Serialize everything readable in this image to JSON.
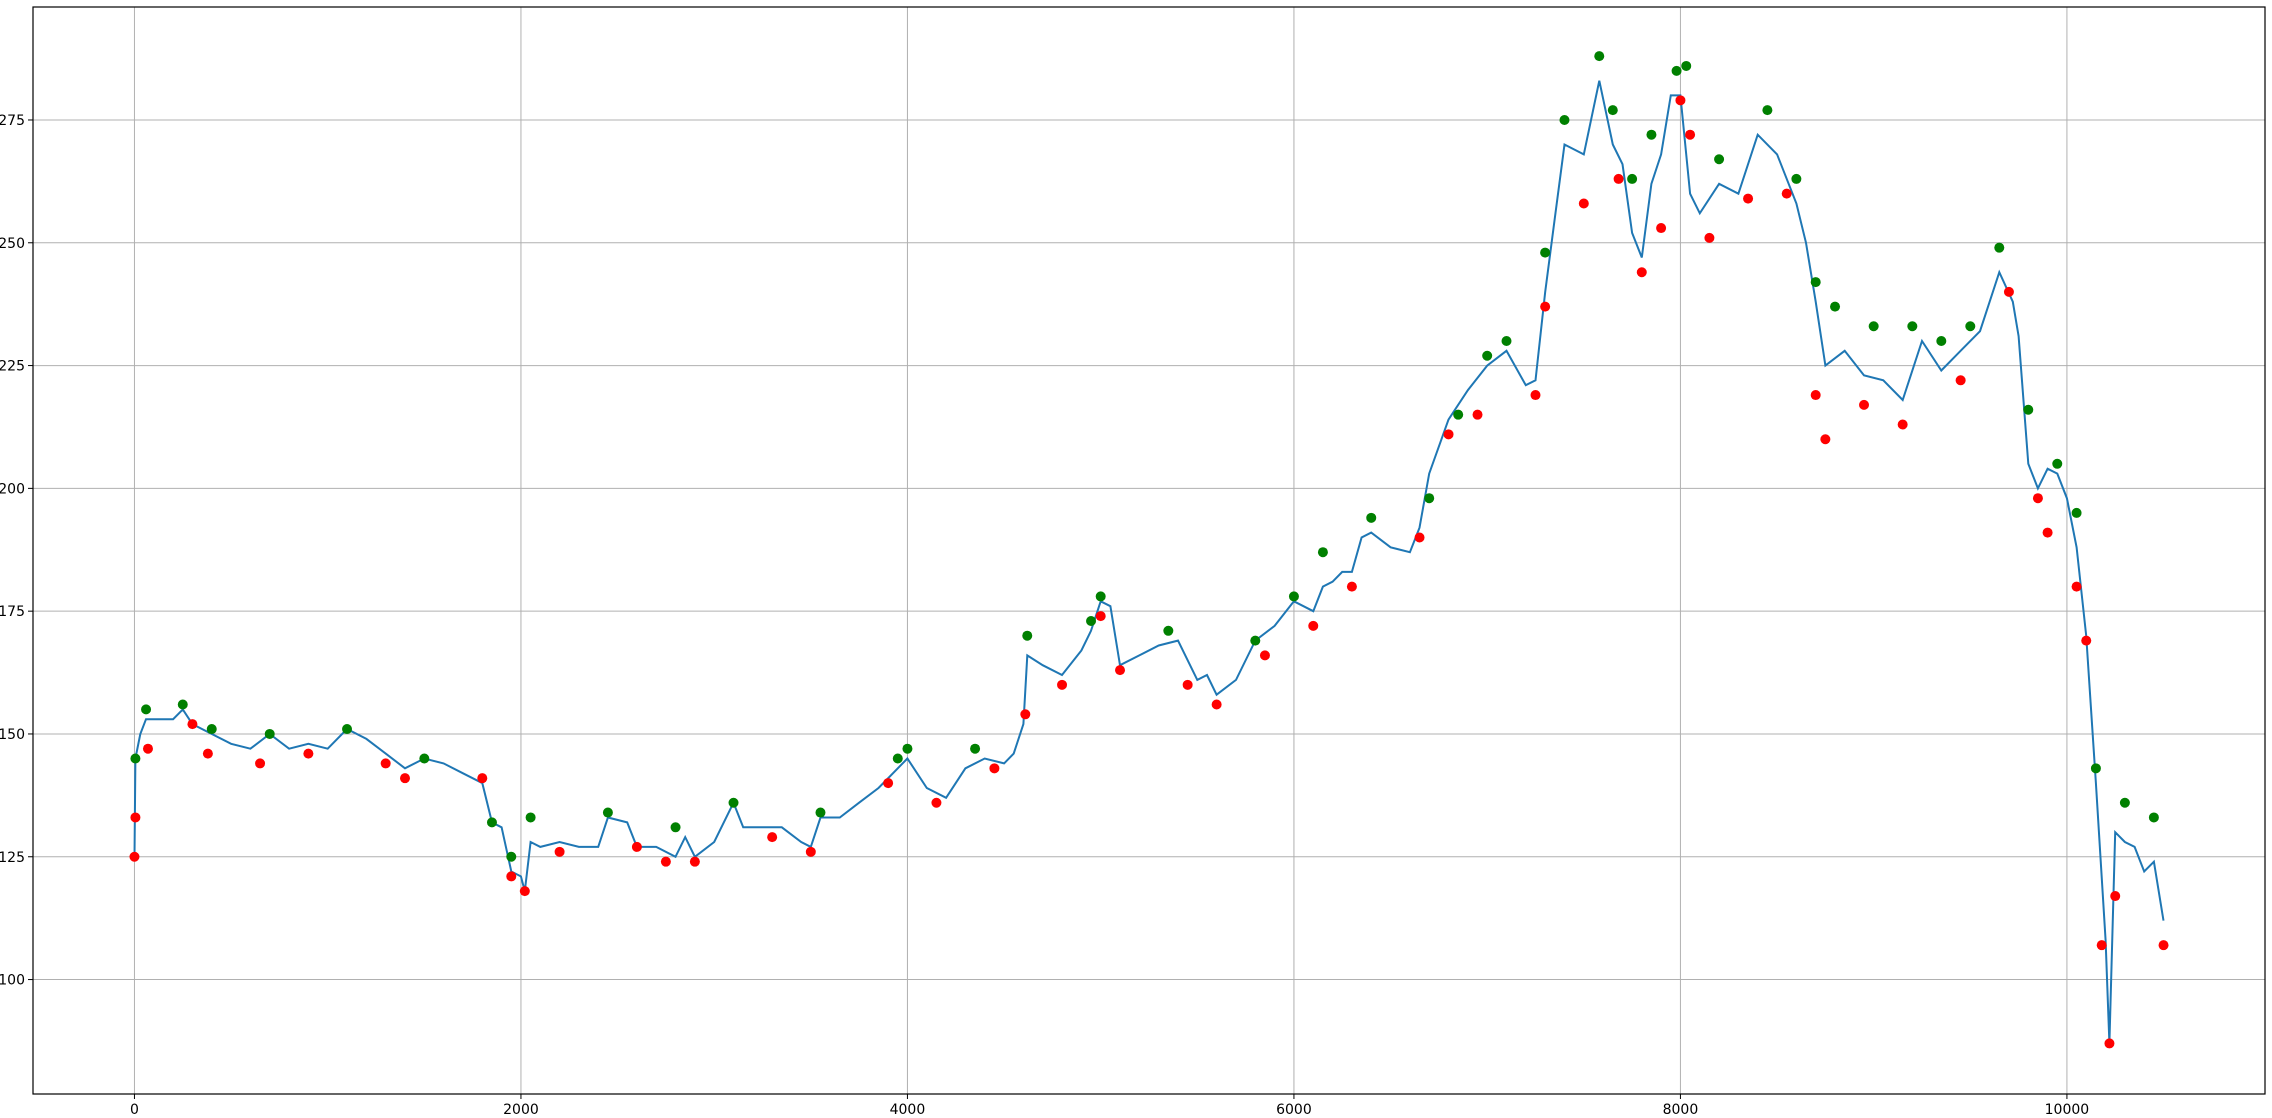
{
  "chart_data": {
    "type": "line",
    "xlim": [
      -525,
      11025
    ],
    "ylim": [
      76.7,
      298
    ],
    "xticks": [
      0,
      2000,
      4000,
      6000,
      8000,
      10000
    ],
    "yticks": [
      100,
      125,
      150,
      175,
      200,
      225,
      250,
      275
    ],
    "grid": true,
    "series": [
      {
        "type": "line",
        "color": "#1f77b4",
        "x": [
          0,
          5,
          30,
          60,
          200,
          250,
          300,
          400,
          500,
          600,
          700,
          800,
          900,
          1000,
          1100,
          1200,
          1300,
          1400,
          1500,
          1600,
          1700,
          1800,
          1850,
          1900,
          1950,
          2000,
          2020,
          2050,
          2100,
          2200,
          2300,
          2400,
          2450,
          2550,
          2600,
          2700,
          2800,
          2850,
          2900,
          3000,
          3100,
          3150,
          3250,
          3350,
          3450,
          3500,
          3550,
          3650,
          3750,
          3850,
          3950,
          4000,
          4100,
          4200,
          4300,
          4400,
          4500,
          4550,
          4600,
          4620,
          4700,
          4800,
          4900,
          4950,
          5000,
          5050,
          5100,
          5200,
          5300,
          5400,
          5500,
          5550,
          5600,
          5700,
          5800,
          5900,
          6000,
          6100,
          6150,
          6200,
          6250,
          6300,
          6350,
          6400,
          6500,
          6600,
          6650,
          6700,
          6800,
          6900,
          7000,
          7100,
          7200,
          7250,
          7300,
          7350,
          7400,
          7500,
          7580,
          7650,
          7700,
          7750,
          7800,
          7850,
          7900,
          7950,
          8000,
          8050,
          8100,
          8200,
          8300,
          8400,
          8500,
          8600,
          8650,
          8700,
          8750,
          8850,
          8950,
          9050,
          9150,
          9250,
          9350,
          9450,
          9550,
          9650,
          9720,
          9750,
          9800,
          9850,
          9900,
          9950,
          10000,
          10050,
          10100,
          10150,
          10200,
          10220,
          10250,
          10300,
          10350,
          10400,
          10450,
          10500
        ],
        "values": [
          125,
          145,
          150,
          153,
          153,
          155,
          152,
          150,
          148,
          147,
          150,
          147,
          148,
          147,
          151,
          149,
          146,
          143,
          145,
          144,
          142,
          140,
          132,
          131,
          122,
          121,
          118,
          128,
          127,
          128,
          127,
          127,
          133,
          132,
          127,
          127,
          125,
          129,
          125,
          128,
          136,
          131,
          131,
          131,
          128,
          127,
          133,
          133,
          136,
          139,
          143,
          145,
          139,
          137,
          143,
          145,
          144,
          146,
          152,
          166,
          164,
          162,
          167,
          171,
          177,
          176,
          164,
          166,
          168,
          169,
          161,
          162,
          158,
          161,
          169,
          172,
          177,
          175,
          180,
          181,
          183,
          183,
          190,
          191,
          188,
          187,
          192,
          203,
          214,
          220,
          225,
          228,
          221,
          222,
          240,
          255,
          270,
          268,
          283,
          270,
          266,
          252,
          247,
          262,
          268,
          280,
          280,
          260,
          256,
          262,
          260,
          272,
          268,
          258,
          250,
          238,
          225,
          228,
          223,
          222,
          218,
          230,
          224,
          228,
          232,
          244,
          238,
          231,
          205,
          200,
          204,
          203,
          198,
          188,
          170,
          140,
          108,
          87,
          130,
          128,
          127,
          122,
          124,
          112
        ]
      },
      {
        "type": "scatter",
        "color": "#008000",
        "x": [
          5,
          60,
          250,
          400,
          700,
          1100,
          1500,
          1850,
          1950,
          2050,
          2450,
          2800,
          3100,
          3550,
          3950,
          4000,
          4350,
          4620,
          4950,
          5000,
          5350,
          5800,
          6000,
          6150,
          6400,
          6700,
          6850,
          7000,
          7100,
          7300,
          7400,
          7580,
          7650,
          7750,
          7850,
          7980,
          8030,
          8200,
          8450,
          8600,
          8700,
          8800,
          9000,
          9200,
          9350,
          9500,
          9650,
          9800,
          9950,
          10050,
          10150,
          10300,
          10450
        ],
        "values": [
          145,
          155,
          156,
          151,
          150,
          151,
          145,
          132,
          125,
          133,
          134,
          131,
          136,
          134,
          145,
          147,
          147,
          170,
          173,
          178,
          171,
          169,
          178,
          187,
          194,
          198,
          215,
          227,
          230,
          248,
          275,
          288,
          277,
          263,
          272,
          285,
          286,
          267,
          277,
          263,
          242,
          237,
          233,
          233,
          230,
          233,
          249,
          216,
          205,
          195,
          143,
          136,
          133
        ]
      },
      {
        "type": "scatter",
        "color": "#ff0000",
        "x": [
          0,
          5,
          70,
          300,
          380,
          650,
          900,
          1300,
          1400,
          1800,
          1950,
          2020,
          2200,
          2600,
          2750,
          2900,
          3300,
          3500,
          3900,
          4150,
          4450,
          4610,
          4800,
          5000,
          5100,
          5450,
          5600,
          5850,
          6100,
          6300,
          6650,
          6800,
          6950,
          7250,
          7300,
          7500,
          7680,
          7800,
          7900,
          8000,
          8050,
          8150,
          8350,
          8550,
          8700,
          8750,
          8950,
          9150,
          9450,
          9700,
          9850,
          9900,
          10050,
          10100,
          10180,
          10220,
          10250,
          10500
        ],
        "values": [
          125,
          133,
          147,
          152,
          146,
          144,
          146,
          144,
          141,
          141,
          121,
          118,
          126,
          127,
          124,
          124,
          129,
          126,
          140,
          136,
          143,
          154,
          160,
          174,
          163,
          160,
          156,
          166,
          172,
          180,
          190,
          211,
          215,
          219,
          237,
          258,
          263,
          244,
          253,
          279,
          272,
          251,
          259,
          260,
          219,
          210,
          217,
          213,
          222,
          240,
          198,
          191,
          180,
          169,
          107,
          87,
          117,
          107
        ]
      }
    ]
  }
}
